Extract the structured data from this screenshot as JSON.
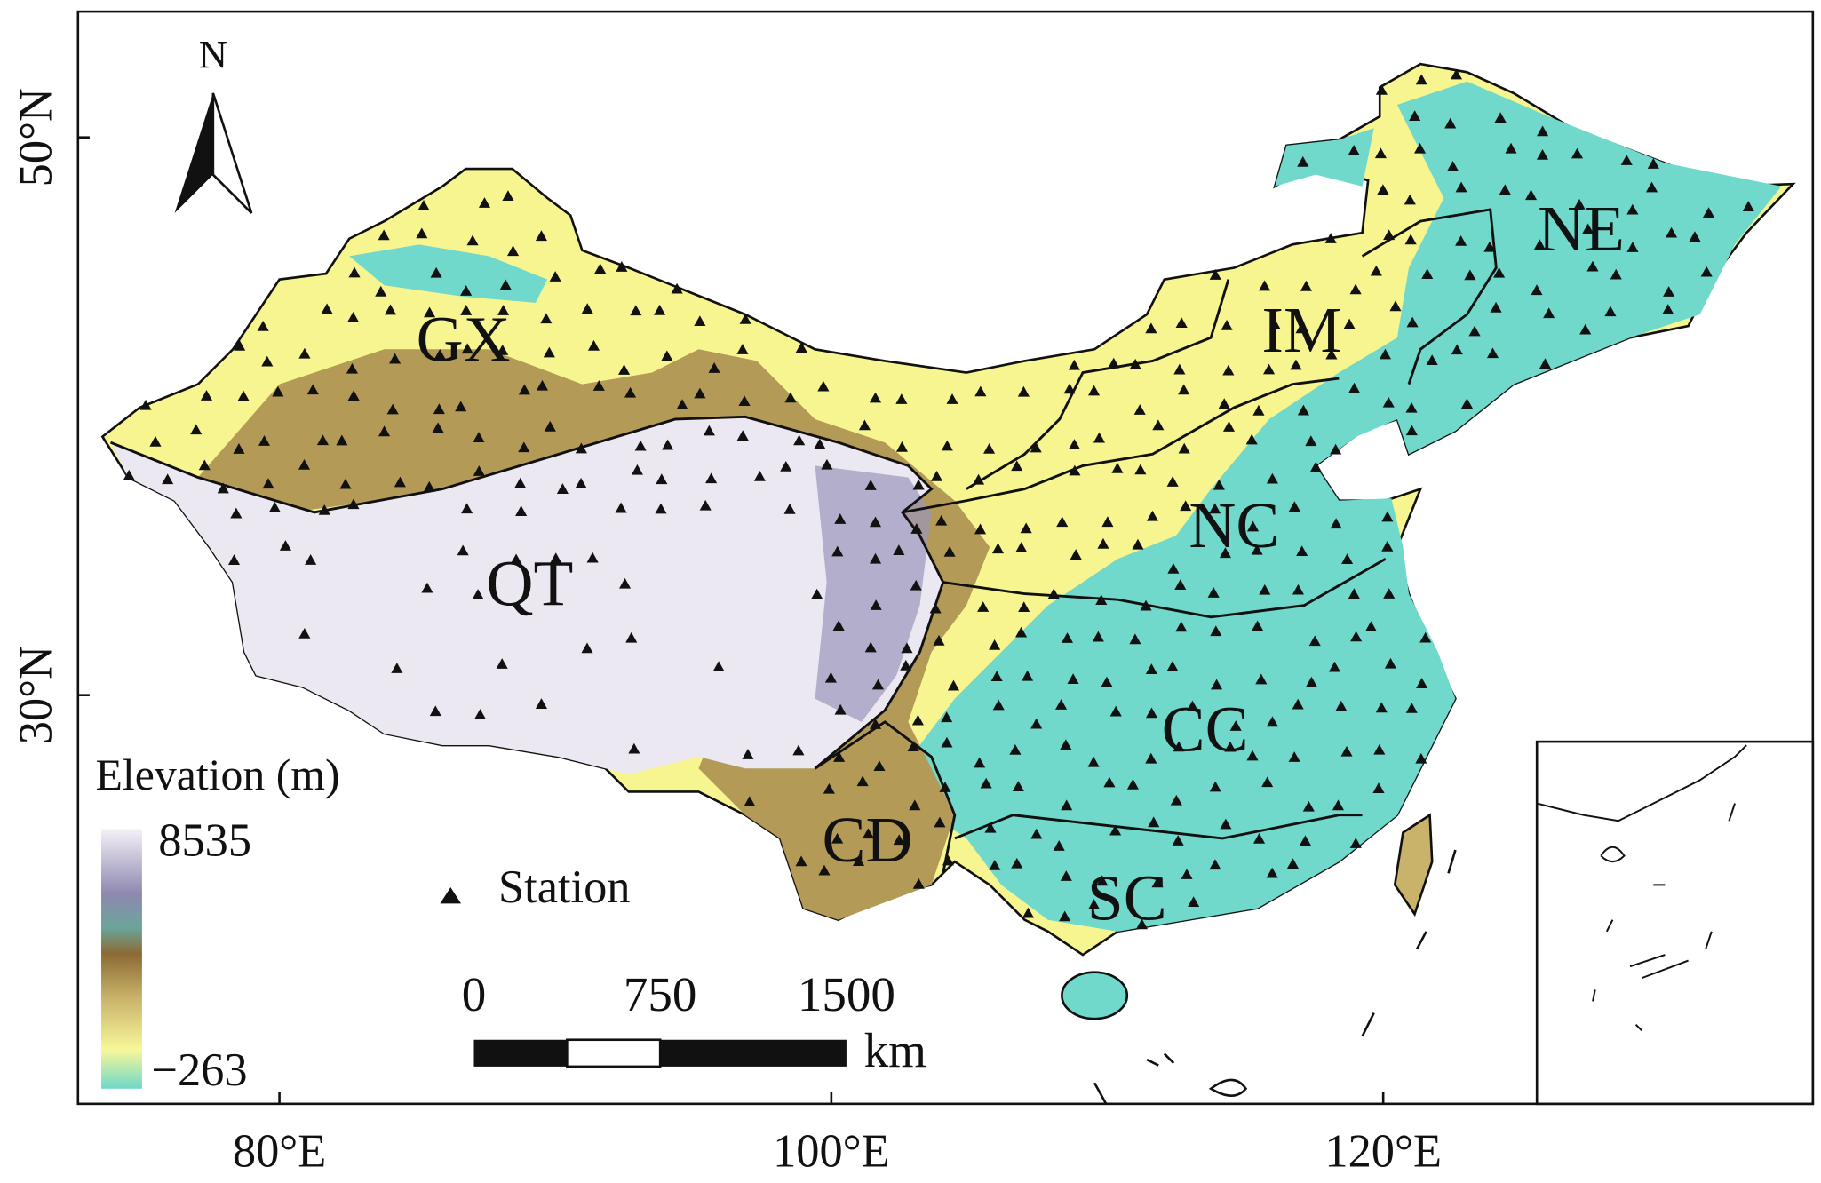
{
  "north": "N",
  "lon_ticks": [
    "80°E",
    "100°E",
    "120°E"
  ],
  "lat_ticks": [
    "50°N",
    "30°N"
  ],
  "regions": [
    "GX",
    "QT",
    "IM",
    "NE",
    "NC",
    "CC",
    "SC",
    "CD"
  ],
  "legend": {
    "title": "Elevation (m)",
    "max": "8535",
    "min": "−263",
    "station": "Station"
  },
  "scale_bar": {
    "labels": [
      "0",
      "750",
      "1500"
    ],
    "unit": "km"
  }
}
